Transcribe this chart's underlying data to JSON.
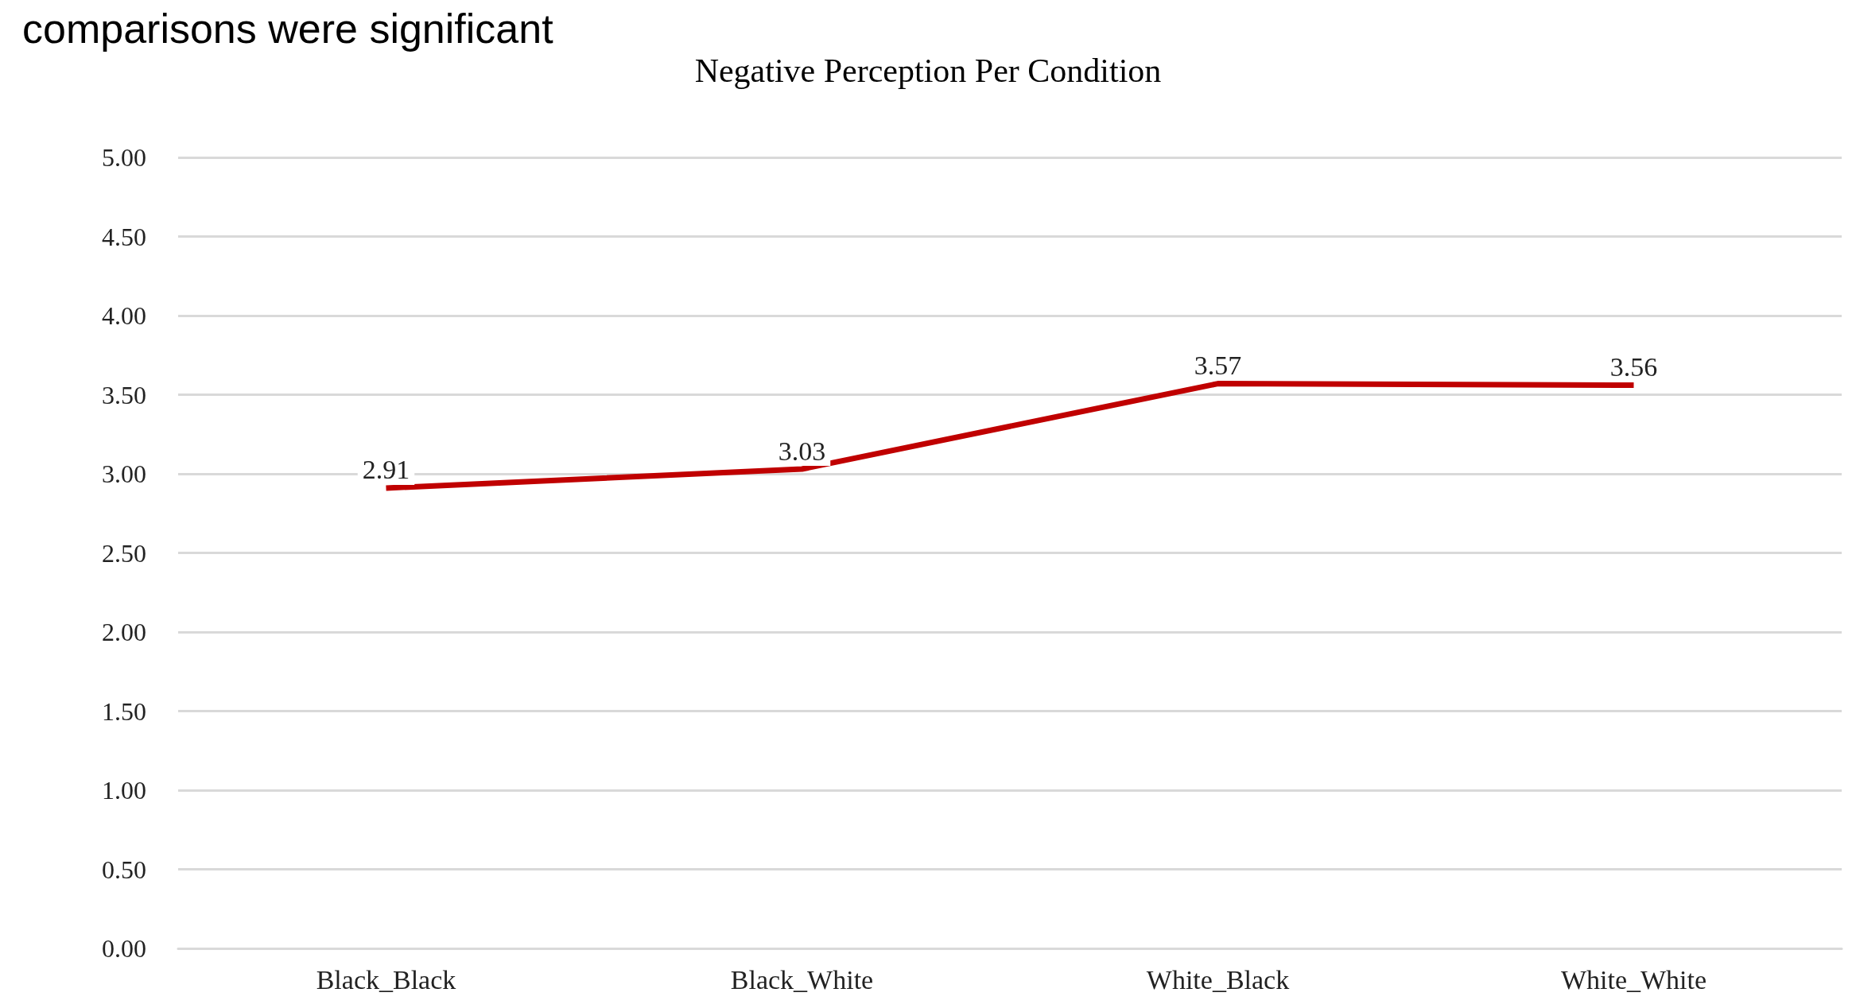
{
  "chart_data": {
    "type": "line",
    "title": "Negative Perception Per Condition",
    "annotations": [
      "comparisons were significant"
    ],
    "categories": [
      "Black_Black",
      "Black_White",
      "White_Black",
      "White_White"
    ],
    "series": [
      {
        "color": "#c00000",
        "values": [
          2.91,
          3.03,
          3.57,
          3.56
        ]
      }
    ],
    "ylim": [
      0,
      5
    ],
    "yticks": [
      {
        "value": 0,
        "label": "0.00"
      },
      {
        "value": 0.5,
        "label": "0.50"
      },
      {
        "value": 1,
        "label": "1.00"
      },
      {
        "value": 1.5,
        "label": "1.50"
      },
      {
        "value": 2,
        "label": "2.00"
      },
      {
        "value": 2.5,
        "label": "2.50"
      },
      {
        "value": 3,
        "label": "3.00"
      },
      {
        "value": 3.5,
        "label": "3.50"
      },
      {
        "value": 4,
        "label": "4.00"
      },
      {
        "value": 4.5,
        "label": "4.50"
      },
      {
        "value": 5,
        "label": "5.00"
      }
    ],
    "grid": "y",
    "data_labels": true,
    "marker": "none",
    "line_style": "solid"
  }
}
